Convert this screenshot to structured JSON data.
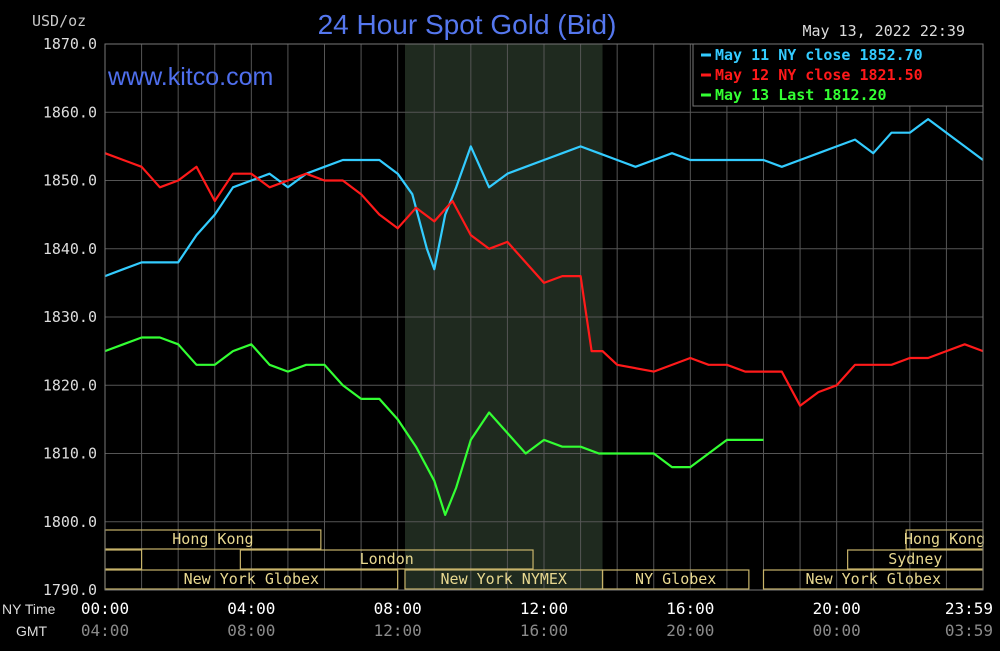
{
  "chart_data": {
    "type": "line",
    "title": "24 Hour Spot Gold (Bid)",
    "unit_label": "USD/oz",
    "watermark": "www.kitco.com",
    "timestamp": "May 13, 2022 22:39",
    "grid": true,
    "legend_position": "top-right",
    "ylim": [
      1790,
      1870
    ],
    "y_ticks": [
      "1870.0",
      "1860.0",
      "1850.0",
      "1840.0",
      "1830.0",
      "1820.0",
      "1810.0",
      "1800.0",
      "1790.0"
    ],
    "xlim": [
      0,
      24
    ],
    "x_tick_positions": [
      0,
      4,
      8,
      12,
      16,
      20,
      24
    ],
    "x_row_labels": {
      "ny": "NY Time",
      "gmt": "GMT"
    },
    "x_ticks_ny": [
      "00:00",
      "04:00",
      "08:00",
      "12:00",
      "16:00",
      "20:00",
      "23:59"
    ],
    "x_ticks_gmt": [
      "04:00",
      "08:00",
      "12:00",
      "16:00",
      "20:00",
      "00:00",
      "03:59"
    ],
    "highlight_hours": [
      8.2,
      13.6
    ],
    "sessions": [
      {
        "label": "Hong Kong",
        "row": 0,
        "start": 0,
        "end": 5.9
      },
      {
        "label": "Hong Kong",
        "row": 0,
        "start": 21.9,
        "end": 24
      },
      {
        "label": "",
        "row": 1,
        "start": 0,
        "end": 1.0
      },
      {
        "label": "London",
        "row": 1,
        "start": 3.7,
        "end": 11.7
      },
      {
        "label": "Sydney",
        "row": 1,
        "start": 20.3,
        "end": 24
      },
      {
        "label": "New York Globex",
        "row": 2,
        "start": 0,
        "end": 8.0
      },
      {
        "label": "New York NYMEX",
        "row": 2,
        "start": 8.2,
        "end": 13.6
      },
      {
        "label": "NY Globex",
        "row": 2,
        "start": 13.6,
        "end": 17.6
      },
      {
        "label": "New York Globex",
        "row": 2,
        "start": 18.0,
        "end": 24
      }
    ],
    "series": [
      {
        "name": "May 11 NY close 1852.70",
        "color": "#33ccff",
        "x": [
          0,
          0.5,
          1,
          1.5,
          2,
          2.5,
          3,
          3.5,
          4,
          4.5,
          5,
          5.5,
          6,
          6.5,
          7,
          7.5,
          8,
          8.4,
          8.8,
          9,
          9.3,
          9.6,
          10,
          10.5,
          11,
          11.5,
          12,
          12.5,
          13,
          13.5,
          14,
          14.5,
          15,
          15.5,
          16,
          16.5,
          17,
          17.5,
          18,
          18.5,
          19,
          19.5,
          20,
          20.5,
          21,
          21.5,
          22,
          22.5,
          23,
          23.5,
          24
        ],
        "values": [
          1836,
          1837,
          1838,
          1838,
          1838,
          1842,
          1845,
          1849,
          1850,
          1851,
          1849,
          1851,
          1852,
          1853,
          1853,
          1853,
          1851,
          1848,
          1840,
          1837,
          1845,
          1849,
          1855,
          1849,
          1851,
          1852,
          1853,
          1854,
          1855,
          1854,
          1853,
          1852,
          1853,
          1854,
          1853,
          1853,
          1853,
          1853,
          1853,
          1852,
          1853,
          1854,
          1855,
          1856,
          1854,
          1857,
          1857,
          1859,
          1857,
          1855,
          1853
        ]
      },
      {
        "name": "May 12 NY close 1821.50",
        "color": "#ff1a1a",
        "x": [
          0,
          0.5,
          1,
          1.5,
          2,
          2.5,
          3,
          3.5,
          4,
          4.5,
          5,
          5.5,
          6,
          6.5,
          7,
          7.5,
          8,
          8.5,
          9,
          9.5,
          10,
          10.5,
          11,
          11.5,
          12,
          12.5,
          13,
          13.3,
          13.6,
          14,
          15,
          16,
          16.5,
          17,
          17.5,
          18,
          18.5,
          19,
          19.5,
          20,
          20.5,
          21,
          21.5,
          22,
          22.5,
          23,
          23.5,
          24
        ],
        "values": [
          1854,
          1853,
          1852,
          1849,
          1850,
          1852,
          1847,
          1851,
          1851,
          1849,
          1850,
          1851,
          1850,
          1850,
          1848,
          1845,
          1843,
          1846,
          1844,
          1847,
          1842,
          1840,
          1841,
          1838,
          1835,
          1836,
          1836,
          1825,
          1825,
          1823,
          1822,
          1824,
          1823,
          1823,
          1822,
          1822,
          1822,
          1817,
          1819,
          1820,
          1823,
          1823,
          1823,
          1824,
          1824,
          1825,
          1826,
          1825
        ]
      },
      {
        "name": "May 13 Last 1812.20",
        "color": "#33ff33",
        "x": [
          0,
          0.5,
          1,
          1.5,
          2,
          2.5,
          3,
          3.5,
          4,
          4.5,
          5,
          5.5,
          6,
          6.5,
          7,
          7.5,
          8,
          8.5,
          9,
          9.3,
          9.6,
          10,
          10.5,
          11,
          11.5,
          12,
          12.5,
          13,
          13.5,
          14,
          14.5,
          15,
          15.5,
          16,
          16.5,
          17,
          17.5,
          18
        ],
        "values": [
          1825,
          1826,
          1827,
          1827,
          1826,
          1823,
          1823,
          1825,
          1826,
          1823,
          1822,
          1823,
          1823,
          1820,
          1818,
          1818,
          1815,
          1811,
          1806,
          1801,
          1805,
          1812,
          1816,
          1813,
          1810,
          1812,
          1811,
          1811,
          1810,
          1810,
          1810,
          1810,
          1808,
          1808,
          1810,
          1812,
          1812,
          1812
        ]
      }
    ]
  }
}
